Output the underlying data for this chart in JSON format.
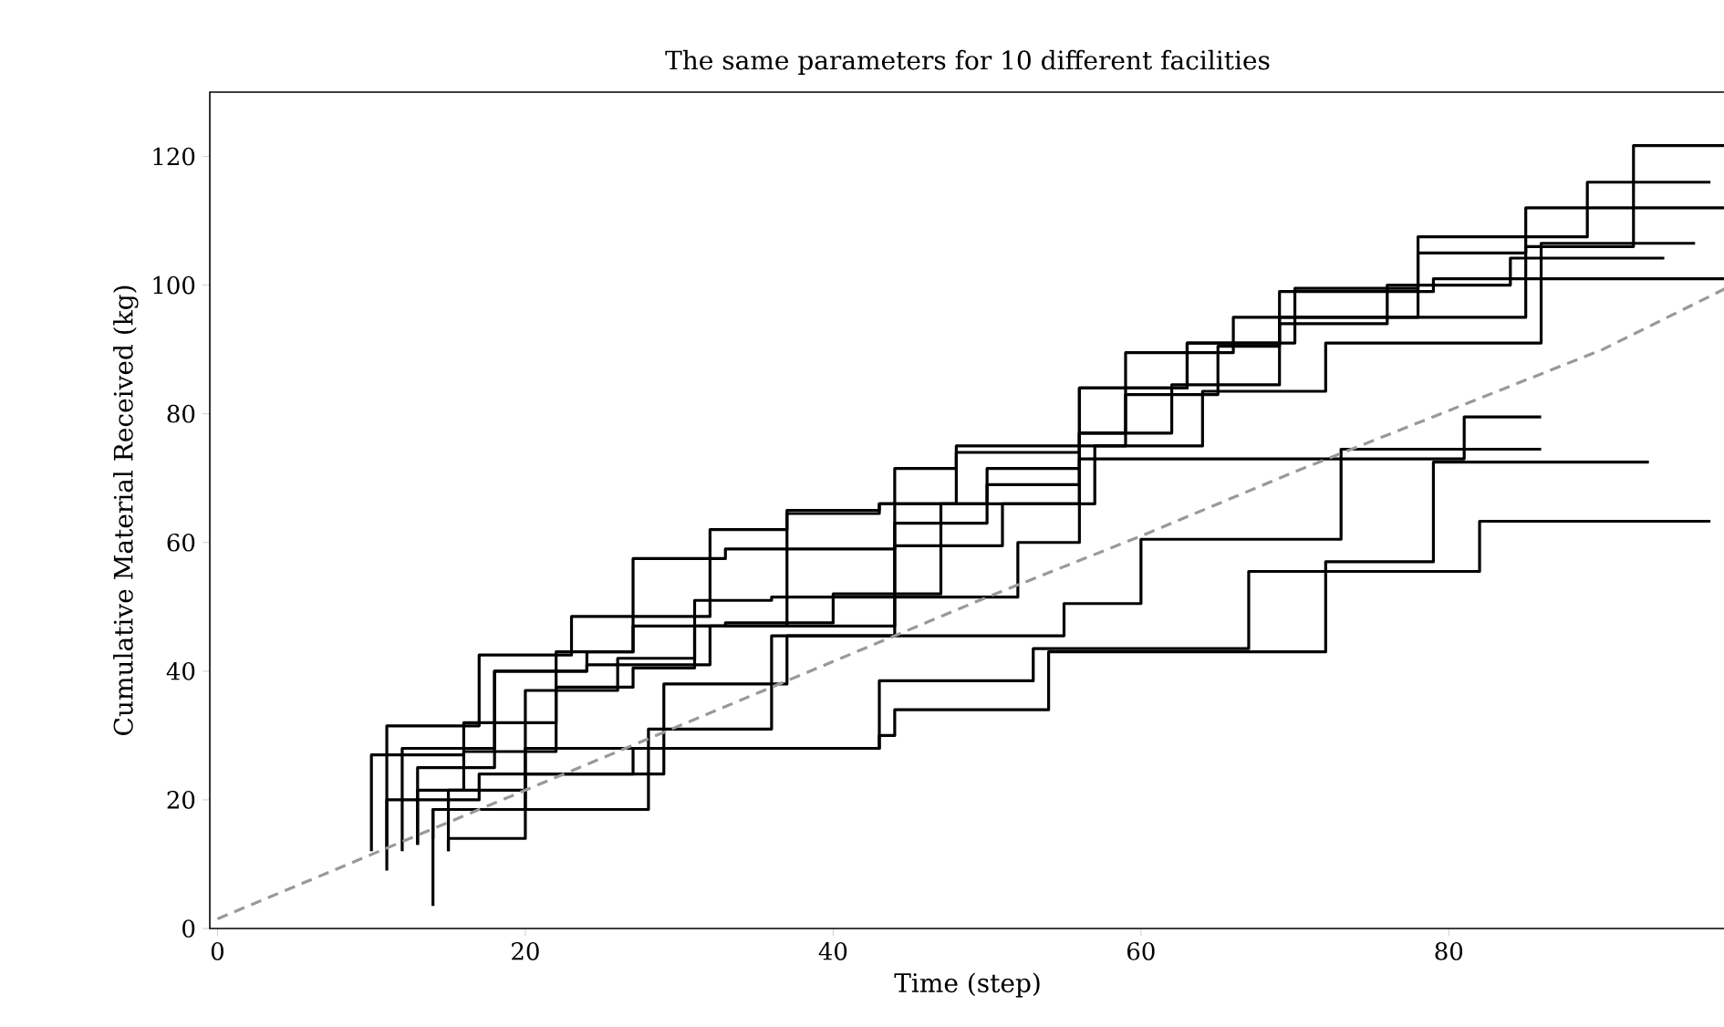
{
  "chart_data": {
    "type": "step",
    "title": "The same parameters for 10 different facilities",
    "xlabel": "Time (step)",
    "ylabel": "Cumulative Material Received (kg)",
    "xlim": [
      -0.5,
      98
    ],
    "ylim": [
      0,
      130
    ],
    "xticks": [
      0,
      20,
      40,
      60,
      80
    ],
    "yticks": [
      0,
      20,
      40,
      60,
      80,
      100,
      120
    ],
    "series": [
      {
        "color": "#000000",
        "x": [
          11,
          17,
          23,
          32,
          37,
          43,
          48,
          59,
          66,
          85,
          92,
          98
        ],
        "values": [
          9,
          31.5,
          42.5,
          48.5,
          62,
          64.5,
          66,
          75,
          89.5,
          95,
          106,
          121.7
        ]
      },
      {
        "color": "#000000",
        "x": [
          10,
          16,
          22,
          27,
          33,
          40,
          47,
          56,
          62,
          69,
          78,
          89,
          97
        ],
        "values": [
          12,
          27,
          32,
          43,
          47,
          47.5,
          52,
          66,
          77,
          84.5,
          95,
          107.5,
          116
        ]
      },
      {
        "color": "#000000",
        "x": [
          12,
          18,
          24,
          27,
          33,
          44,
          48,
          56,
          63,
          70,
          78,
          85,
          98
        ],
        "values": [
          12,
          28,
          40,
          43,
          57.5,
          59,
          71.5,
          74,
          84,
          91,
          99.5,
          105,
          112
        ]
      },
      {
        "color": "#000000",
        "x": [
          13,
          16,
          22,
          27,
          31,
          36,
          44,
          51,
          57,
          64,
          72,
          86,
          96
        ],
        "values": [
          13,
          21.5,
          27.5,
          37.5,
          40.5,
          51,
          51.5,
          59.5,
          66,
          75,
          83.5,
          91,
          106.5
        ]
      },
      {
        "color": "#000000",
        "x": [
          15,
          20,
          26,
          31,
          37,
          43,
          50,
          56,
          63,
          69,
          76,
          84,
          94
        ],
        "values": [
          12,
          21.5,
          37,
          42,
          47,
          65,
          66,
          71.5,
          84,
          91,
          94,
          100,
          104.2
        ]
      },
      {
        "color": "#000000",
        "x": [
          13,
          18,
          24,
          32,
          44,
          50,
          56,
          59,
          65,
          69,
          79,
          98
        ],
        "values": [
          13,
          25,
          40,
          41,
          47,
          63,
          69,
          77,
          83,
          90.5,
          99,
          101
        ]
      },
      {
        "color": "#000000",
        "x": [
          14,
          20,
          29,
          37,
          44,
          52,
          56,
          71,
          81,
          86
        ],
        "values": [
          3.5,
          18.5,
          24,
          38,
          45.5,
          51.5,
          60,
          73,
          73,
          79.5
        ]
      },
      {
        "color": "#000000",
        "x": [
          15,
          20,
          28,
          36,
          43,
          55,
          60,
          73,
          86
        ],
        "values": [
          12,
          14,
          18.5,
          31,
          45.5,
          45.5,
          50.5,
          60.5,
          74.5
        ]
      },
      {
        "color": "#000000",
        "x": [
          11,
          17,
          27,
          43,
          53,
          67,
          72,
          79,
          93
        ],
        "values": [
          12.5,
          20,
          24,
          28,
          38.5,
          43.5,
          55.5,
          57,
          72.5
        ]
      },
      {
        "color": "#000000",
        "x": [
          14,
          20,
          29,
          43,
          44,
          54,
          63,
          72,
          82,
          97
        ],
        "values": [
          14,
          18.5,
          28,
          28,
          30,
          34,
          43,
          43,
          55.5,
          63.3
        ]
      },
      {
        "color": "#999999",
        "type": "line",
        "line_style": "dashed",
        "x": [
          0,
          10,
          20,
          30,
          40,
          50,
          60,
          70,
          80,
          90,
          98
        ],
        "values": [
          1.5,
          11.5,
          21.5,
          31.5,
          41.5,
          51.5,
          61,
          71,
          80.5,
          90,
          99.5
        ]
      }
    ]
  }
}
